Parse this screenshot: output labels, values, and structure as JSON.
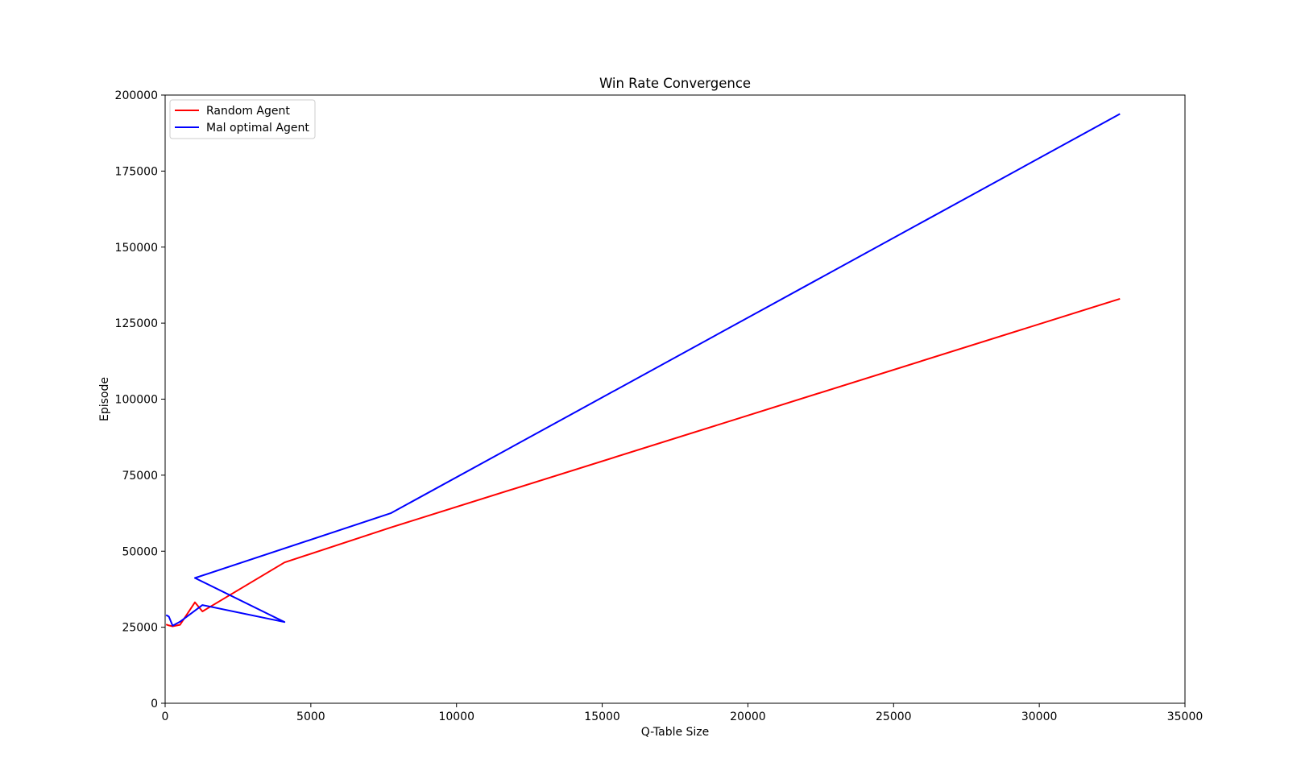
{
  "chart_data": {
    "type": "line",
    "title": "Win Rate Convergence",
    "xlabel": "Q-Table Size",
    "ylabel": "Episode",
    "xlim": [
      0,
      35000
    ],
    "ylim": [
      0,
      200000
    ],
    "xticks": [
      0,
      5000,
      10000,
      15000,
      20000,
      25000,
      30000,
      35000
    ],
    "yticks": [
      0,
      25000,
      50000,
      75000,
      100000,
      125000,
      150000,
      175000,
      200000
    ],
    "xtick_labels": [
      "0",
      "5000",
      "10000",
      "15000",
      "20000",
      "25000",
      "30000",
      "35000"
    ],
    "ytick_labels": [
      "0",
      "25000",
      "50000",
      "75000",
      "100000",
      "125000",
      "150000",
      "175000",
      "200000"
    ],
    "grid": false,
    "legend_position": "top-left",
    "series": [
      {
        "name": "Random Agent",
        "color": "#ff0000",
        "points": [
          [
            32,
            25900
          ],
          [
            128,
            25600
          ],
          [
            256,
            25300
          ],
          [
            512,
            25800
          ],
          [
            1024,
            33200
          ],
          [
            1280,
            30200
          ],
          [
            4096,
            46300
          ],
          [
            7744,
            57800
          ],
          [
            32768,
            133000
          ]
        ]
      },
      {
        "name": "Mal optimal Agent",
        "color": "#0000ff",
        "points": [
          [
            32,
            29000
          ],
          [
            128,
            28500
          ],
          [
            256,
            25500
          ],
          [
            512,
            26800
          ],
          [
            1280,
            32300
          ],
          [
            4096,
            26700
          ],
          [
            1024,
            41200
          ],
          [
            7744,
            62500
          ],
          [
            32768,
            193800
          ]
        ]
      }
    ]
  }
}
